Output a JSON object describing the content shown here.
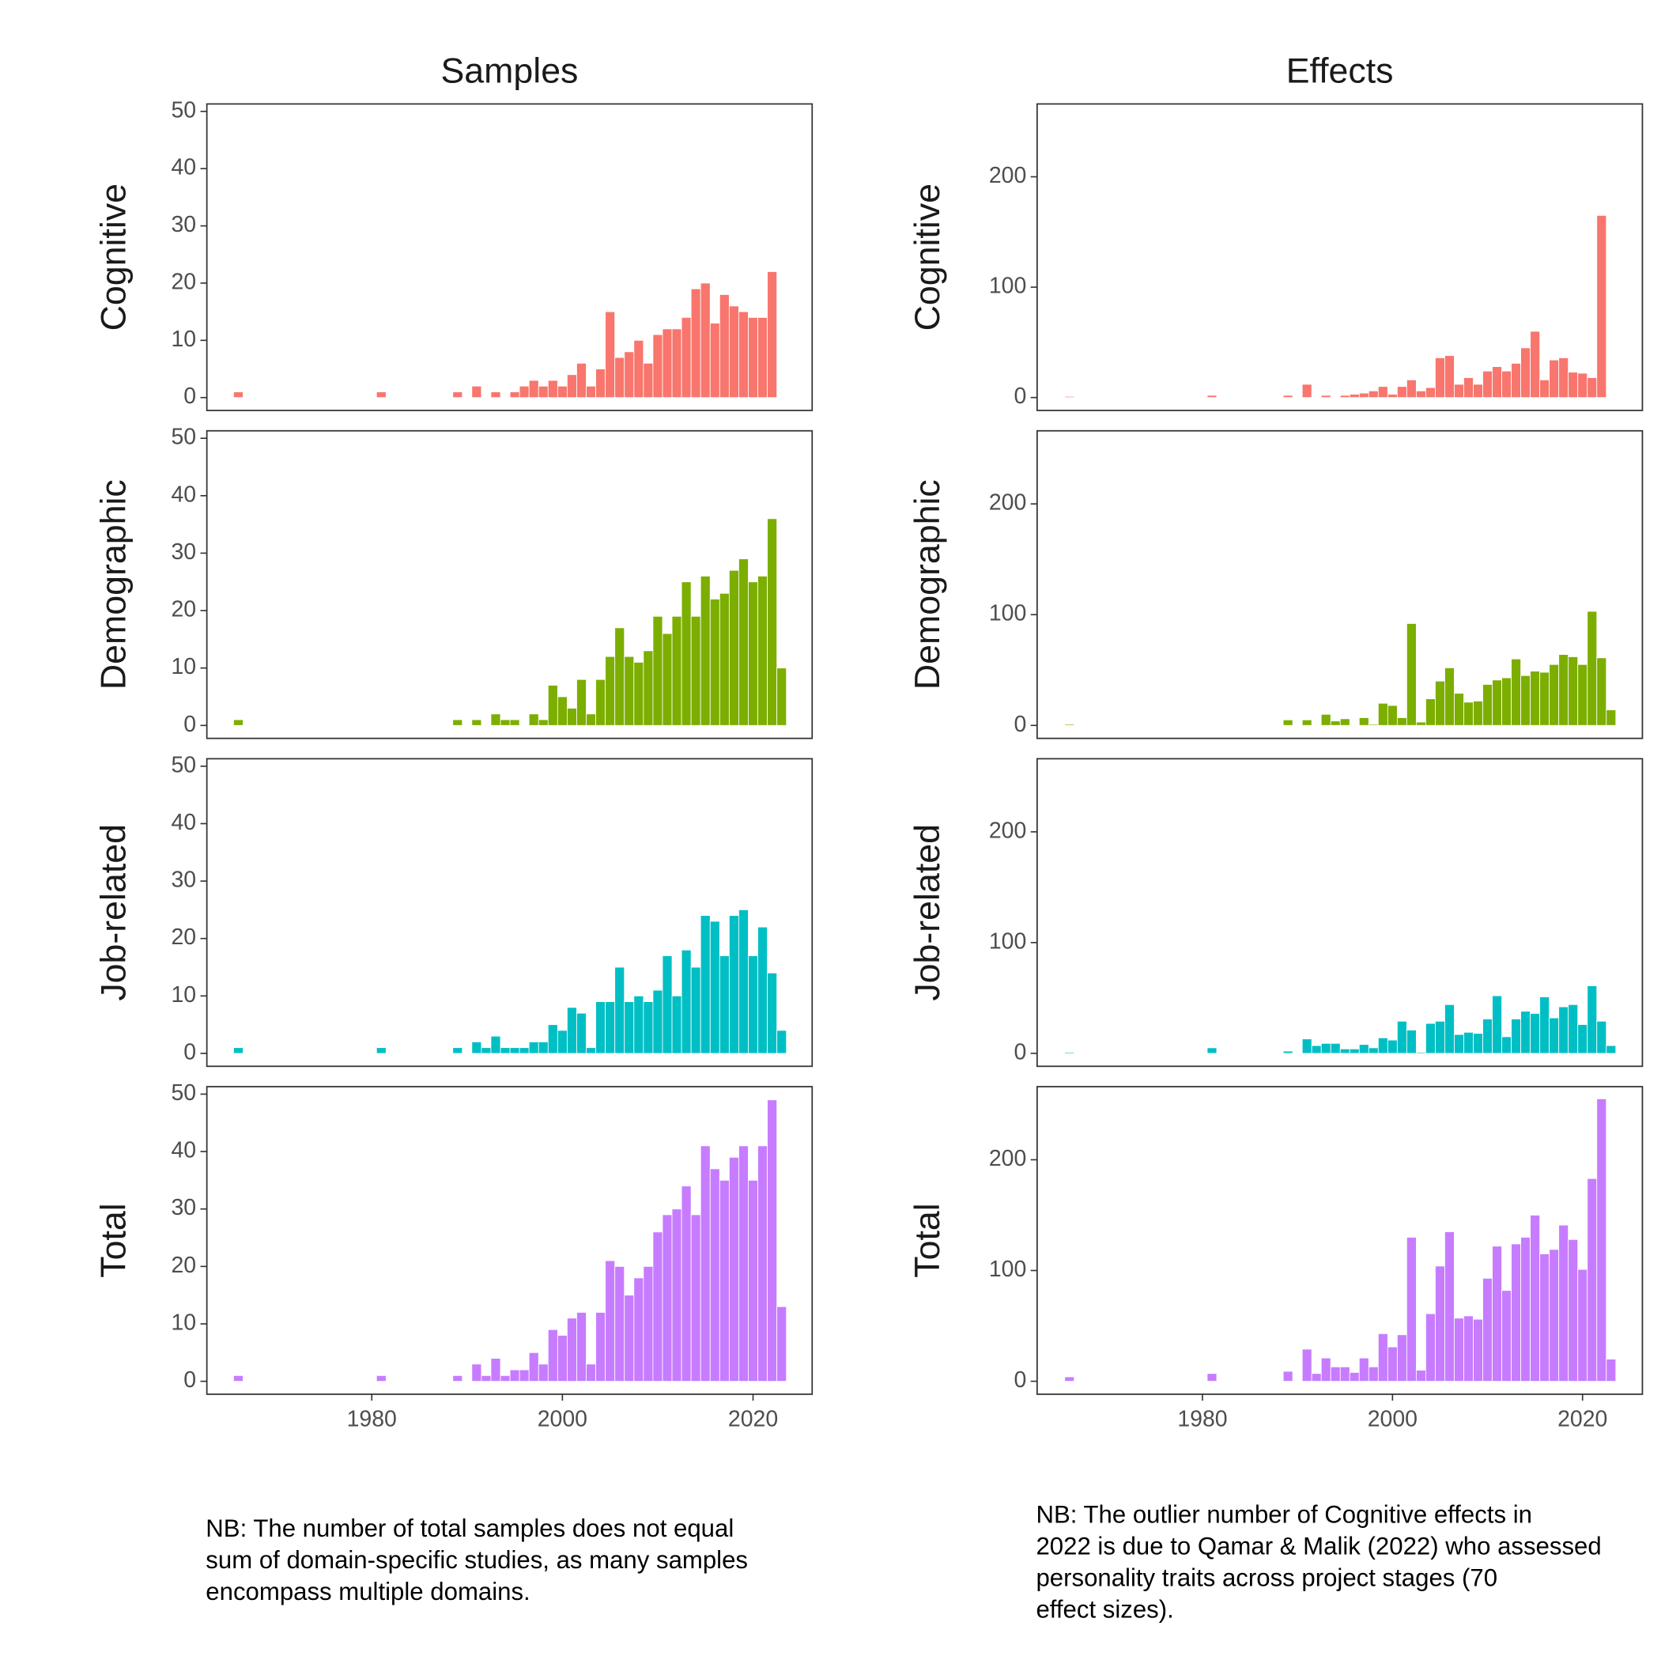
{
  "columns": [
    {
      "title": "Samples",
      "note": [
        "NB: The number of total samples does not equal",
        "sum of domain-specific studies, as many samples",
        "encompass multiple domains."
      ]
    },
    {
      "title": "Effects",
      "note": [
        "NB: The outlier number of Cognitive effects in",
        "2022 is due to Qamar & Malik (2022) who assessed",
        "personality traits across project stages (70",
        "effect sizes)."
      ]
    }
  ],
  "chart_data": [
    {
      "type": "bar",
      "ylabel": "Cognitive",
      "color": "#F8766D",
      "xlim": [
        1962.7,
        2026.2
      ],
      "ylim": [
        -2.25,
        51.3
      ],
      "yticks": [
        0,
        10,
        20,
        30,
        40,
        50
      ],
      "x": [
        1966,
        1981,
        1989,
        1990,
        1991,
        1992,
        1993,
        1994,
        1995,
        1996,
        1997,
        1998,
        1999,
        2000,
        2001,
        2002,
        2003,
        2004,
        2005,
        2006,
        2007,
        2008,
        2009,
        2010,
        2011,
        2012,
        2013,
        2014,
        2015,
        2016,
        2017,
        2018,
        2019,
        2020,
        2021,
        2022,
        2023
      ],
      "values": [
        1,
        1,
        1,
        0,
        2,
        0,
        1,
        0,
        1,
        2,
        3,
        2,
        3,
        2,
        4,
        6,
        2,
        5,
        15,
        7,
        8,
        10,
        6,
        11,
        12,
        12,
        14,
        19,
        20,
        13,
        18,
        16,
        15,
        14,
        14,
        22,
        0
      ]
    },
    {
      "type": "bar",
      "ylabel": "Demographic",
      "color": "#7CAE00",
      "xlim": [
        1962.7,
        2026.2
      ],
      "ylim": [
        -2.25,
        51.3
      ],
      "yticks": [
        0,
        10,
        20,
        30,
        40,
        50
      ],
      "x": [
        1966,
        1981,
        1989,
        1990,
        1991,
        1992,
        1993,
        1994,
        1995,
        1996,
        1997,
        1998,
        1999,
        2000,
        2001,
        2002,
        2003,
        2004,
        2005,
        2006,
        2007,
        2008,
        2009,
        2010,
        2011,
        2012,
        2013,
        2014,
        2015,
        2016,
        2017,
        2018,
        2019,
        2020,
        2021,
        2022,
        2023
      ],
      "values": [
        1,
        0,
        1,
        0,
        1,
        0,
        2,
        1,
        1,
        0,
        2,
        1,
        7,
        5,
        3,
        8,
        2,
        8,
        12,
        17,
        12,
        11,
        13,
        19,
        16,
        19,
        25,
        19,
        26,
        22,
        23,
        27,
        29,
        25,
        26,
        36,
        10
      ]
    },
    {
      "type": "bar",
      "ylabel": "Job-related",
      "color": "#00BFC4",
      "xlim": [
        1962.7,
        2026.2
      ],
      "ylim": [
        -2.25,
        51.3
      ],
      "yticks": [
        0,
        10,
        20,
        30,
        40,
        50
      ],
      "x": [
        1966,
        1981,
        1989,
        1990,
        1991,
        1992,
        1993,
        1994,
        1995,
        1996,
        1997,
        1998,
        1999,
        2000,
        2001,
        2002,
        2003,
        2004,
        2005,
        2006,
        2007,
        2008,
        2009,
        2010,
        2011,
        2012,
        2013,
        2014,
        2015,
        2016,
        2017,
        2018,
        2019,
        2020,
        2021,
        2022,
        2023
      ],
      "values": [
        1,
        1,
        1,
        0,
        2,
        1,
        3,
        1,
        1,
        1,
        2,
        2,
        5,
        4,
        8,
        7,
        1,
        9,
        9,
        15,
        9,
        10,
        9,
        11,
        17,
        10,
        18,
        15,
        24,
        23,
        17,
        24,
        25,
        17,
        22,
        14,
        4
      ]
    },
    {
      "type": "bar",
      "ylabel": "Total",
      "color": "#C77CFF",
      "xlim": [
        1962.7,
        2026.2
      ],
      "ylim": [
        -2.25,
        51.3
      ],
      "yticks": [
        0,
        10,
        20,
        30,
        40,
        50
      ],
      "xticks": [
        1980,
        2000,
        2020
      ],
      "x": [
        1966,
        1981,
        1989,
        1990,
        1991,
        1992,
        1993,
        1994,
        1995,
        1996,
        1997,
        1998,
        1999,
        2000,
        2001,
        2002,
        2003,
        2004,
        2005,
        2006,
        2007,
        2008,
        2009,
        2010,
        2011,
        2012,
        2013,
        2014,
        2015,
        2016,
        2017,
        2018,
        2019,
        2020,
        2021,
        2022,
        2023
      ],
      "values": [
        1,
        1,
        1,
        0,
        3,
        1,
        4,
        1,
        2,
        2,
        5,
        3,
        9,
        8,
        11,
        12,
        3,
        12,
        21,
        20,
        15,
        18,
        20,
        26,
        29,
        30,
        34,
        29,
        41,
        37,
        35,
        39,
        41,
        35,
        41,
        49,
        13
      ]
    },
    {
      "type": "bar",
      "ylabel": "Cognitive",
      "color": "#F8766D",
      "xlim": [
        1962.6,
        2026.3
      ],
      "ylim": [
        -11.7,
        266
      ],
      "yticks": [
        0,
        100,
        200
      ],
      "x": [
        1966,
        1981,
        1989,
        1990,
        1991,
        1992,
        1993,
        1994,
        1995,
        1996,
        1997,
        1998,
        1999,
        2000,
        2001,
        2002,
        2003,
        2004,
        2005,
        2006,
        2007,
        2008,
        2009,
        2010,
        2011,
        2012,
        2013,
        2014,
        2015,
        2016,
        2017,
        2018,
        2019,
        2020,
        2021,
        2022,
        2023
      ],
      "values": [
        1,
        2,
        2,
        0,
        12,
        0,
        2,
        0,
        2,
        3,
        4,
        6,
        10,
        3,
        10,
        16,
        6,
        9,
        36,
        38,
        12,
        18,
        12,
        24,
        28,
        24,
        31,
        45,
        60,
        16,
        34,
        36,
        23,
        22,
        18,
        165,
        0
      ]
    },
    {
      "type": "bar",
      "ylabel": "Demographic",
      "color": "#7CAE00",
      "xlim": [
        1962.6,
        2026.3
      ],
      "ylim": [
        -11.7,
        266
      ],
      "yticks": [
        0,
        100,
        200
      ],
      "x": [
        1966,
        1981,
        1989,
        1990,
        1991,
        1992,
        1993,
        1994,
        1995,
        1996,
        1997,
        1998,
        1999,
        2000,
        2001,
        2002,
        2003,
        2004,
        2005,
        2006,
        2007,
        2008,
        2009,
        2010,
        2011,
        2012,
        2013,
        2014,
        2015,
        2016,
        2017,
        2018,
        2019,
        2020,
        2021,
        2022,
        2023
      ],
      "values": [
        1,
        0,
        5,
        0,
        5,
        0,
        10,
        4,
        6,
        0,
        7,
        1,
        20,
        18,
        7,
        92,
        3,
        24,
        40,
        52,
        29,
        21,
        22,
        37,
        41,
        43,
        60,
        45,
        49,
        48,
        55,
        64,
        62,
        55,
        103,
        61,
        14
      ]
    },
    {
      "type": "bar",
      "ylabel": "Job-related",
      "color": "#00BFC4",
      "xlim": [
        1962.6,
        2026.3
      ],
      "ylim": [
        -11.7,
        266
      ],
      "yticks": [
        0,
        100,
        200
      ],
      "x": [
        1966,
        1981,
        1989,
        1990,
        1991,
        1992,
        1993,
        1994,
        1995,
        1996,
        1997,
        1998,
        1999,
        2000,
        2001,
        2002,
        2003,
        2004,
        2005,
        2006,
        2007,
        2008,
        2009,
        2010,
        2011,
        2012,
        2013,
        2014,
        2015,
        2016,
        2017,
        2018,
        2019,
        2020,
        2021,
        2022,
        2023
      ],
      "values": [
        1,
        5,
        2,
        0,
        13,
        7,
        9,
        9,
        4,
        4,
        8,
        5,
        14,
        12,
        29,
        21,
        1,
        27,
        29,
        44,
        17,
        19,
        18,
        31,
        52,
        15,
        31,
        38,
        36,
        51,
        32,
        42,
        44,
        26,
        61,
        29,
        7
      ]
    },
    {
      "type": "bar",
      "ylabel": "Total",
      "color": "#C77CFF",
      "xlim": [
        1962.6,
        2026.3
      ],
      "ylim": [
        -11.7,
        266
      ],
      "yticks": [
        0,
        100,
        200
      ],
      "xticks": [
        1980,
        2000,
        2020
      ],
      "x": [
        1966,
        1981,
        1989,
        1990,
        1991,
        1992,
        1993,
        1994,
        1995,
        1996,
        1997,
        1998,
        1999,
        2000,
        2001,
        2002,
        2003,
        2004,
        2005,
        2006,
        2007,
        2008,
        2009,
        2010,
        2011,
        2012,
        2013,
        2014,
        2015,
        2016,
        2017,
        2018,
        2019,
        2020,
        2021,
        2022,
        2023
      ],
      "values": [
        4,
        7,
        9,
        0,
        29,
        7,
        21,
        13,
        13,
        8,
        21,
        13,
        43,
        31,
        42,
        130,
        10,
        61,
        104,
        135,
        57,
        59,
        56,
        93,
        122,
        82,
        124,
        130,
        150,
        115,
        119,
        141,
        128,
        101,
        183,
        255,
        20
      ]
    }
  ]
}
